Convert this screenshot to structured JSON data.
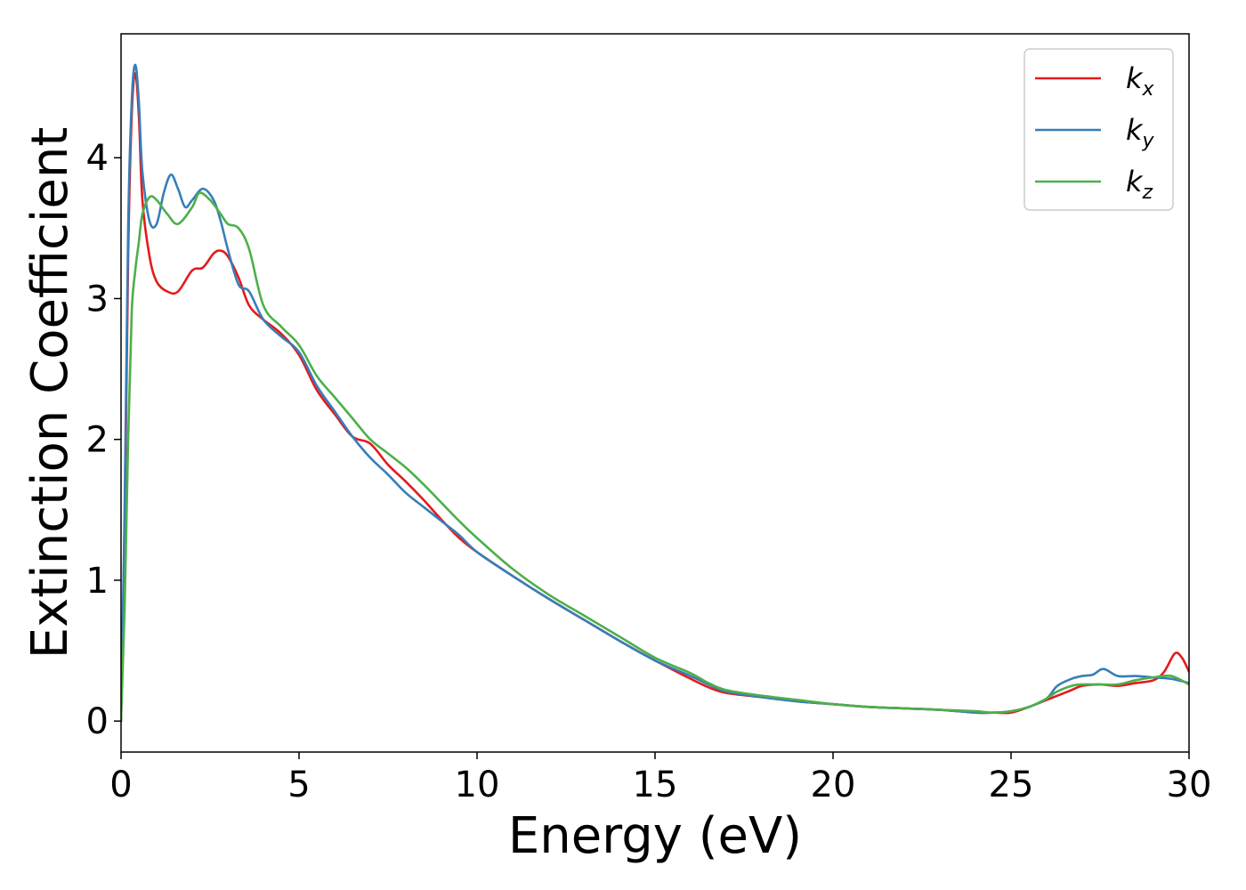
{
  "chart_data": {
    "type": "line",
    "xlabel": "Energy (eV)",
    "ylabel": "Extinction Coefficient",
    "xlim": [
      0,
      30
    ],
    "ylim": [
      -0.22,
      4.88
    ],
    "xticks": [
      0,
      5,
      10,
      15,
      20,
      25,
      30
    ],
    "xtick_labels": [
      "0",
      "5",
      "10",
      "15",
      "20",
      "25",
      "30"
    ],
    "yticks": [
      0,
      1,
      2,
      3,
      4
    ],
    "ytick_labels": [
      "0",
      "1",
      "2",
      "3",
      "4"
    ],
    "grid": false,
    "legend_position": "top-right",
    "series": [
      {
        "name": "kx",
        "label_base": "k",
        "label_sub": "x",
        "color": "#e41a1c",
        "x": [
          0,
          0.1,
          0.2,
          0.3,
          0.4,
          0.5,
          0.6,
          0.8,
          1.0,
          1.3,
          1.6,
          2.0,
          2.3,
          2.6,
          2.8,
          3.0,
          3.3,
          3.6,
          4.0,
          4.5,
          5.0,
          5.5,
          6.0,
          6.5,
          7.0,
          7.5,
          8.0,
          8.5,
          9.0,
          9.5,
          10.0,
          11.0,
          12.0,
          13.0,
          14.0,
          15.0,
          16.0,
          16.5,
          17.0,
          18.0,
          19.0,
          20.0,
          21.0,
          22.0,
          23.0,
          24.0,
          24.5,
          25.0,
          25.5,
          26.0,
          26.3,
          26.7,
          27.0,
          27.5,
          28.0,
          28.5,
          29.0,
          29.3,
          29.6,
          29.8,
          30.0
        ],
        "y": [
          0.0,
          1.3,
          3.3,
          4.3,
          4.6,
          4.3,
          3.7,
          3.3,
          3.12,
          3.05,
          3.05,
          3.2,
          3.22,
          3.32,
          3.34,
          3.3,
          3.15,
          2.95,
          2.85,
          2.75,
          2.6,
          2.35,
          2.18,
          2.02,
          1.97,
          1.82,
          1.7,
          1.57,
          1.43,
          1.3,
          1.2,
          1.03,
          0.87,
          0.72,
          0.57,
          0.43,
          0.3,
          0.24,
          0.2,
          0.17,
          0.14,
          0.12,
          0.1,
          0.09,
          0.08,
          0.06,
          0.06,
          0.06,
          0.1,
          0.15,
          0.18,
          0.22,
          0.25,
          0.26,
          0.25,
          0.27,
          0.29,
          0.35,
          0.48,
          0.45,
          0.35
        ]
      },
      {
        "name": "ky",
        "label_base": "k",
        "label_sub": "y",
        "color": "#377eb8",
        "x": [
          0,
          0.1,
          0.2,
          0.3,
          0.4,
          0.5,
          0.6,
          0.8,
          1.0,
          1.2,
          1.4,
          1.6,
          1.8,
          2.0,
          2.3,
          2.6,
          2.8,
          3.0,
          3.3,
          3.6,
          4.0,
          4.5,
          5.0,
          5.5,
          6.0,
          6.5,
          7.0,
          7.5,
          8.0,
          8.5,
          9.0,
          9.5,
          10.0,
          11.0,
          12.0,
          13.0,
          14.0,
          15.0,
          16.0,
          16.5,
          17.0,
          18.0,
          19.0,
          20.0,
          21.0,
          22.0,
          23.0,
          24.0,
          24.5,
          25.0,
          25.5,
          26.0,
          26.3,
          26.7,
          27.0,
          27.3,
          27.6,
          28.0,
          28.5,
          29.0,
          29.5,
          30.0
        ],
        "y": [
          0.0,
          1.5,
          3.5,
          4.4,
          4.66,
          4.4,
          3.9,
          3.55,
          3.53,
          3.75,
          3.88,
          3.78,
          3.65,
          3.7,
          3.78,
          3.7,
          3.55,
          3.35,
          3.1,
          3.05,
          2.85,
          2.73,
          2.62,
          2.38,
          2.2,
          2.02,
          1.87,
          1.75,
          1.62,
          1.52,
          1.42,
          1.32,
          1.2,
          1.03,
          0.87,
          0.72,
          0.57,
          0.43,
          0.32,
          0.26,
          0.21,
          0.17,
          0.14,
          0.12,
          0.1,
          0.09,
          0.08,
          0.06,
          0.06,
          0.07,
          0.1,
          0.16,
          0.25,
          0.3,
          0.32,
          0.33,
          0.37,
          0.32,
          0.32,
          0.31,
          0.3,
          0.27
        ]
      },
      {
        "name": "kz",
        "label_base": "k",
        "label_sub": "z",
        "color": "#4daf4a",
        "x": [
          0,
          0.1,
          0.2,
          0.3,
          0.4,
          0.5,
          0.6,
          0.8,
          1.0,
          1.3,
          1.6,
          2.0,
          2.2,
          2.5,
          2.8,
          3.0,
          3.3,
          3.6,
          4.0,
          4.5,
          5.0,
          5.5,
          6.0,
          6.5,
          7.0,
          7.5,
          8.0,
          8.5,
          9.0,
          9.5,
          10.0,
          11.0,
          12.0,
          13.0,
          14.0,
          15.0,
          16.0,
          16.5,
          17.0,
          18.0,
          19.0,
          20.0,
          21.0,
          22.0,
          23.0,
          24.0,
          24.5,
          25.0,
          25.5,
          26.0,
          26.3,
          26.7,
          27.0,
          27.5,
          28.0,
          28.5,
          29.0,
          29.5,
          30.0
        ],
        "y": [
          0.0,
          0.8,
          2.0,
          2.9,
          3.2,
          3.4,
          3.6,
          3.72,
          3.7,
          3.6,
          3.53,
          3.65,
          3.75,
          3.7,
          3.6,
          3.53,
          3.5,
          3.35,
          2.95,
          2.8,
          2.67,
          2.45,
          2.3,
          2.15,
          2.0,
          1.9,
          1.8,
          1.68,
          1.55,
          1.42,
          1.3,
          1.08,
          0.9,
          0.75,
          0.6,
          0.45,
          0.34,
          0.27,
          0.22,
          0.18,
          0.15,
          0.12,
          0.1,
          0.09,
          0.08,
          0.07,
          0.06,
          0.07,
          0.1,
          0.16,
          0.21,
          0.25,
          0.26,
          0.26,
          0.26,
          0.29,
          0.31,
          0.32,
          0.26
        ]
      }
    ]
  }
}
